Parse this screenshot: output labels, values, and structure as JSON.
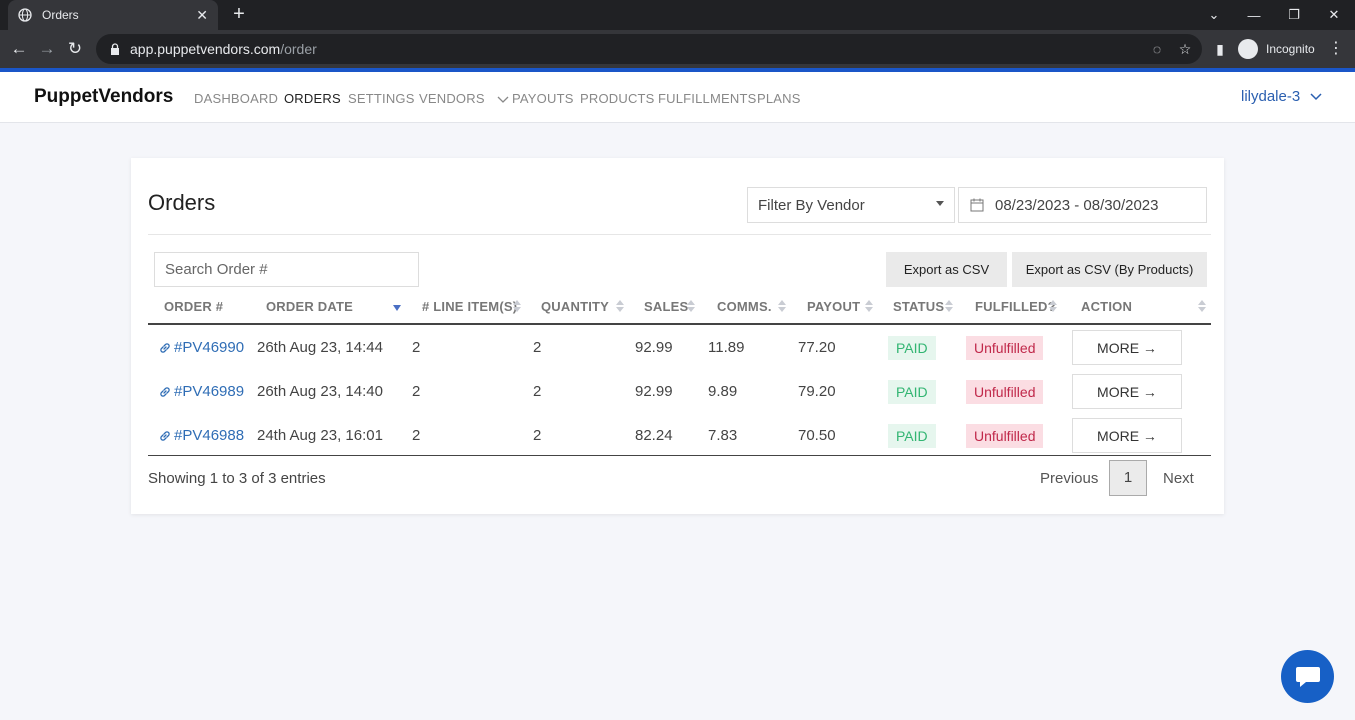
{
  "browser": {
    "tab_title": "Orders",
    "url_host": "app.puppetvendors.com",
    "url_path": "/order",
    "incognito_label": "Incognito"
  },
  "nav": {
    "brand": "PuppetVendors",
    "items": [
      "DASHBOARD",
      "ORDERS",
      "SETTINGS",
      "VENDORS",
      "PAYOUTS",
      "PRODUCTS",
      "FULFILLMENTS",
      "PLANS"
    ],
    "active": "ORDERS",
    "user": "lilydale-3"
  },
  "card": {
    "title": "Orders",
    "vendor_filter": "Filter By Vendor",
    "date_range": "08/23/2023 - 08/30/2023",
    "search_placeholder": "Search Order #",
    "export_csv": "Export as CSV",
    "export_csv_products": "Export as CSV (By Products)"
  },
  "table": {
    "columns": [
      "ORDER #",
      "ORDER DATE",
      "# LINE ITEM(S)",
      "QUANTITY",
      "SALES",
      "COMMS.",
      "PAYOUT",
      "STATUS",
      "FULFILLED?",
      "ACTION"
    ],
    "rows": [
      {
        "order": "#PV46990",
        "date": "26th Aug 23, 14:44",
        "line_items": "2",
        "quantity": "2",
        "sales": "92.99",
        "comms": "11.89",
        "payout": "77.20",
        "status": "PAID",
        "fulfilled": "Unfulfilled",
        "action": "MORE →"
      },
      {
        "order": "#PV46989",
        "date": "26th Aug 23, 14:40",
        "line_items": "2",
        "quantity": "2",
        "sales": "92.99",
        "comms": "9.89",
        "payout": "79.20",
        "status": "PAID",
        "fulfilled": "Unfulfilled",
        "action": "MORE →"
      },
      {
        "order": "#PV46988",
        "date": "24th Aug 23, 16:01",
        "line_items": "2",
        "quantity": "2",
        "sales": "82.24",
        "comms": "7.83",
        "payout": "70.50",
        "status": "PAID",
        "fulfilled": "Unfulfilled",
        "action": "MORE →"
      }
    ]
  },
  "footer": {
    "showing": "Showing 1 to 3 of 3 entries",
    "previous": "Previous",
    "page": "1",
    "next": "Next"
  },
  "colors": {
    "accent": "#1a56c8",
    "link": "#2f6db5",
    "paid": "#32b572",
    "unfulfilled": "#c0284a"
  }
}
